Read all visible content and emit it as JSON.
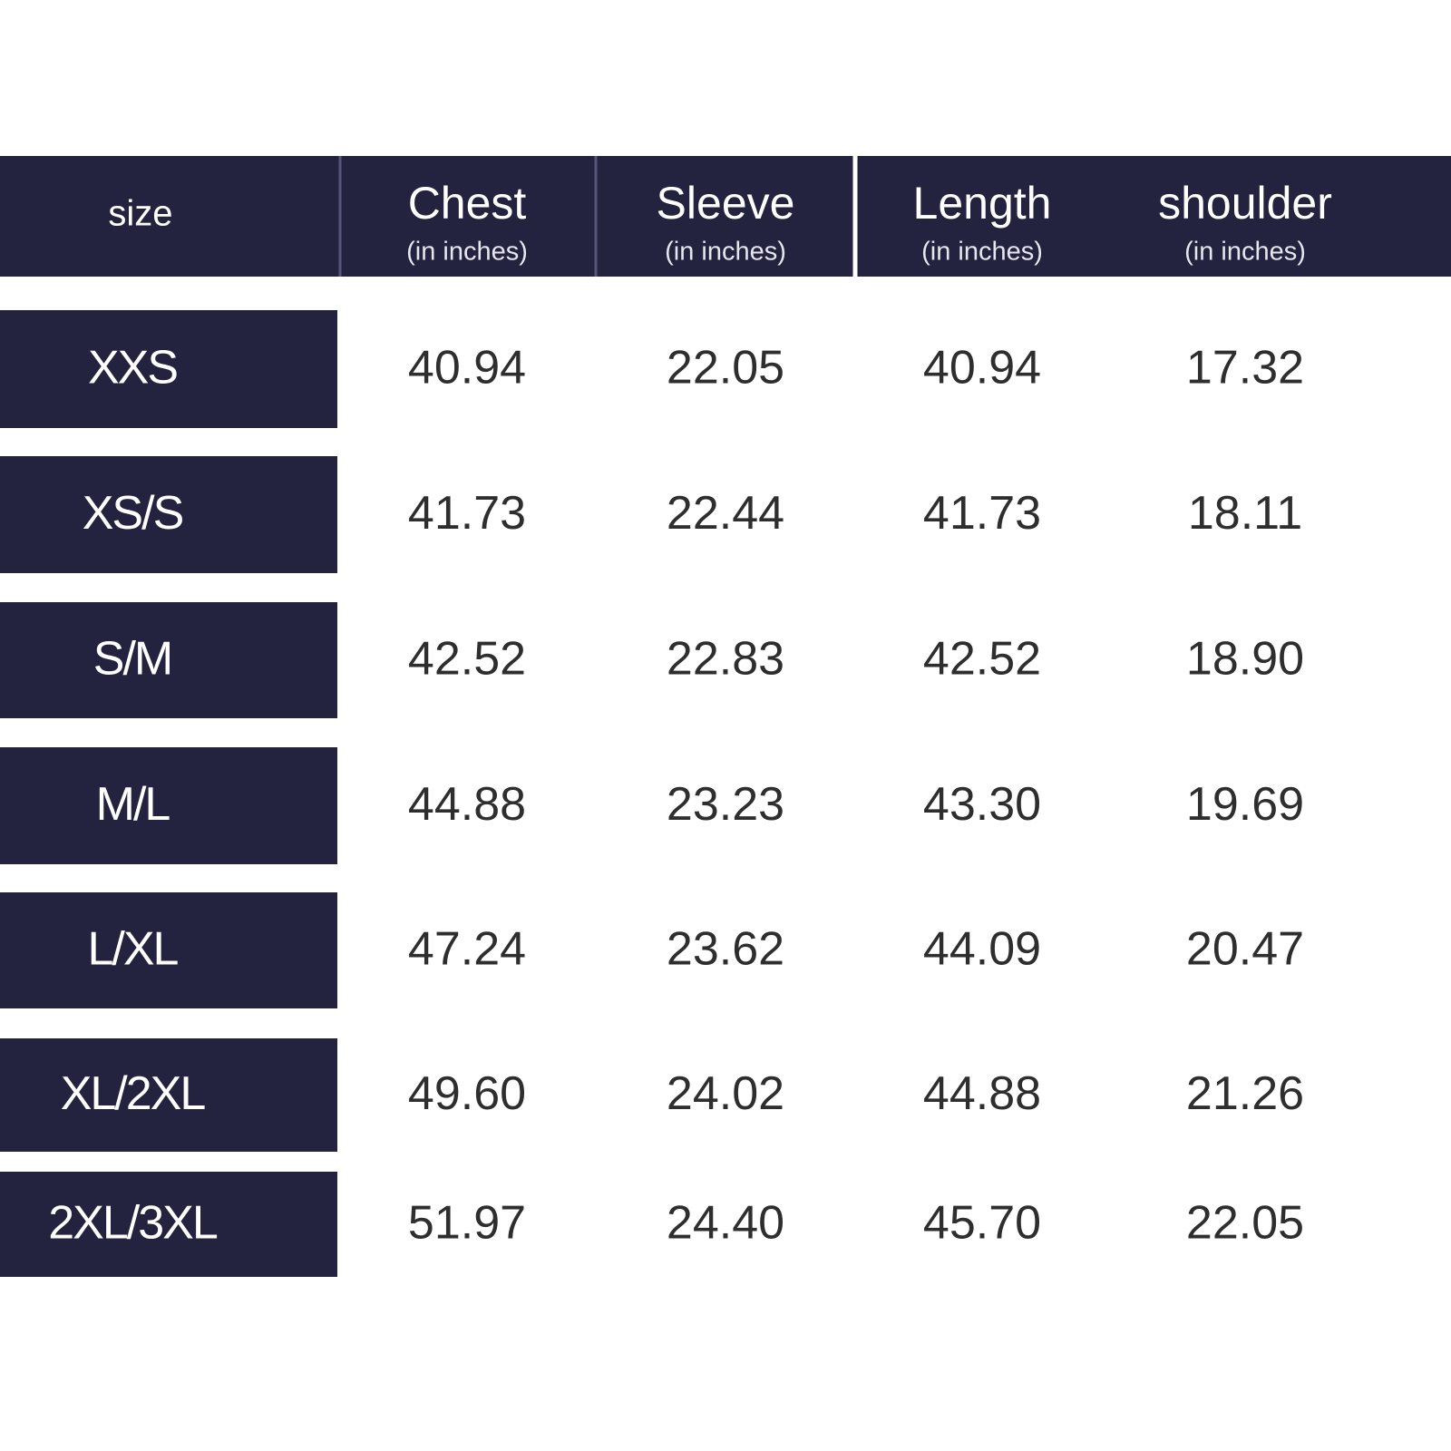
{
  "table": {
    "header": {
      "size": "size",
      "columns": [
        {
          "name": "Chest",
          "unit": "(in inches)"
        },
        {
          "name": "Sleeve",
          "unit": "(in inches)"
        },
        {
          "name": "Length",
          "unit": "(in inches)"
        },
        {
          "name": "shoulder",
          "unit": "(in inches)"
        }
      ]
    },
    "rows": [
      {
        "size": "XXS",
        "values": [
          "40.94",
          "22.05",
          "40.94",
          "17.32"
        ]
      },
      {
        "size": "XS/S",
        "values": [
          "41.73",
          "22.44",
          "41.73",
          "18.11"
        ]
      },
      {
        "size": "S/M",
        "values": [
          "42.52",
          "22.83",
          "42.52",
          "18.90"
        ]
      },
      {
        "size": "M/L",
        "values": [
          "44.88",
          "23.23",
          "43.30",
          "19.69"
        ]
      },
      {
        "size": "L/XL",
        "values": [
          "47.24",
          "23.62",
          "44.09",
          "20.47"
        ]
      },
      {
        "size": "XL/2XL",
        "values": [
          "49.60",
          "24.02",
          "44.88",
          "21.26"
        ]
      },
      {
        "size": "2XL/3XL",
        "values": [
          "51.97",
          "24.40",
          "45.70",
          "22.05"
        ]
      }
    ]
  }
}
